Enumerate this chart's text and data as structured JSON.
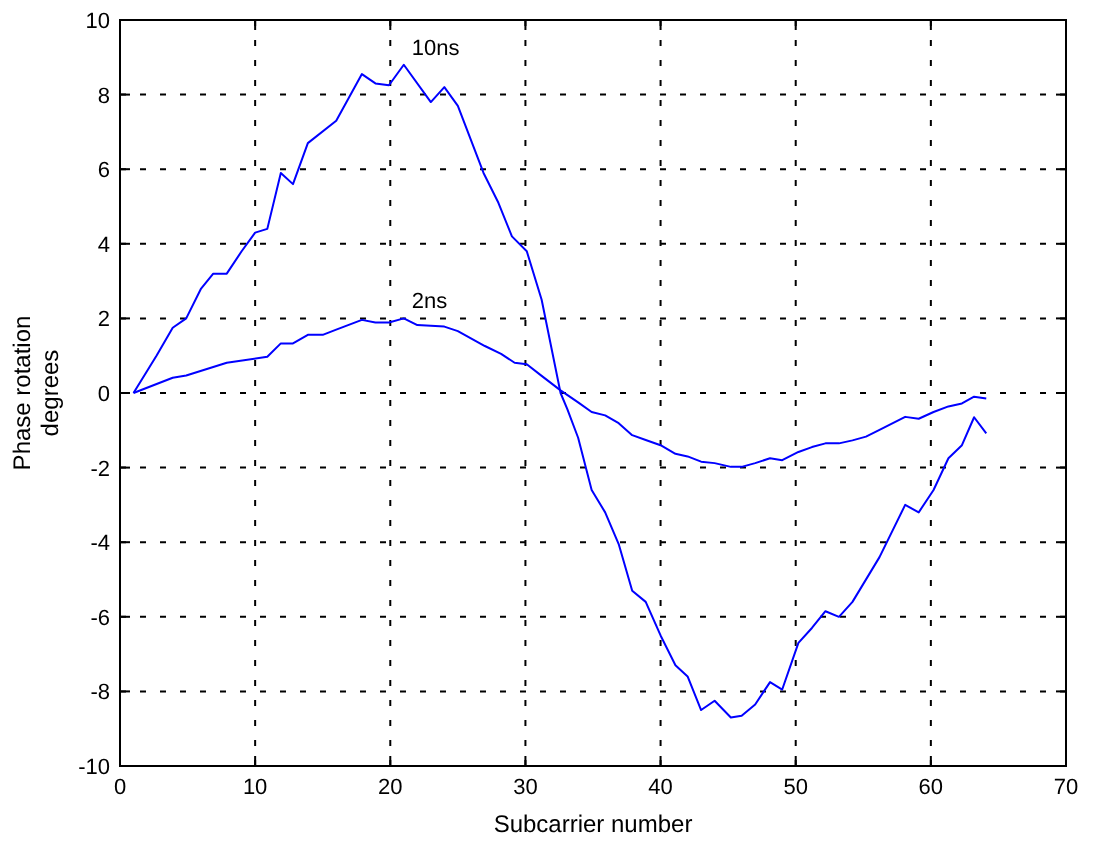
{
  "chart_data": {
    "type": "line",
    "xlabel": "Subcarrier number",
    "ylabel": "Phase rotation\ndegrees",
    "xlim": [
      0,
      70
    ],
    "xticks": [
      0,
      10,
      20,
      30,
      40,
      50,
      60,
      70
    ],
    "ylim": [
      -10,
      10
    ],
    "yticks": [
      -10,
      -8,
      -6,
      -4,
      -2,
      0,
      2,
      4,
      6,
      8,
      10
    ],
    "grid": true,
    "marker": "none",
    "line_style": "solid",
    "series": [
      {
        "name": "10ns",
        "color": "#0000ff",
        "x": [
          1,
          2.7,
          3.9,
          4.9,
          6,
          6.9,
          7.9,
          9,
          10,
          10.9,
          11.9,
          12.8,
          13.9,
          16,
          17.9,
          18.9,
          19.9,
          21,
          23,
          24,
          25,
          26.9,
          28,
          29,
          30.1,
          31.2,
          32.6,
          33.1,
          33.9,
          34.9,
          35.9,
          36.9,
          37.9,
          38.9,
          40,
          41.1,
          42,
          43,
          44,
          45.2,
          46,
          47,
          48.1,
          49,
          50.2,
          51.2,
          52.2,
          53.2,
          54.2,
          56.2,
          58.1,
          59.1,
          60.2,
          61.3,
          62.3,
          63.2,
          64.1
        ],
        "values": [
          0,
          1,
          1.75,
          2,
          2.8,
          3.2,
          3.2,
          3.8,
          4.3,
          4.4,
          5.9,
          5.6,
          6.7,
          7.3,
          8.55,
          8.3,
          8.25,
          8.8,
          7.8,
          8.2,
          7.7,
          5.9,
          5.1,
          4.2,
          3.8,
          2.5,
          0,
          -0.43,
          -1.2,
          -2.6,
          -3.2,
          -4.05,
          -5.3,
          -5.6,
          -6.5,
          -7.3,
          -7.6,
          -8.5,
          -8.25,
          -8.7,
          -8.65,
          -8.35,
          -7.75,
          -7.95,
          -6.7,
          -6.3,
          -5.85,
          -6,
          -5.6,
          -4.4,
          -3,
          -3.2,
          -2.6,
          -1.75,
          -1.4,
          -0.65,
          -1.08
        ]
      },
      {
        "name": "2ns",
        "color": "#0000ff",
        "x": [
          1,
          3.9,
          4.9,
          7.9,
          10.9,
          11.9,
          12.8,
          13.9,
          15,
          16,
          17.9,
          18.9,
          19.9,
          21,
          22,
          24,
          25,
          27,
          28.2,
          29.2,
          30.1,
          31.2,
          32.6,
          33.9,
          34.9,
          35.9,
          36.9,
          37.9,
          38.9,
          40,
          41.1,
          42,
          43,
          44,
          45.2,
          46,
          47,
          48.1,
          49,
          50.2,
          51.2,
          52.2,
          53.2,
          54.2,
          55.2,
          56.2,
          58.1,
          59.1,
          60.2,
          61.3,
          62.3,
          63.2,
          64.1
        ],
        "values": [
          0,
          0.41,
          0.47,
          0.81,
          0.97,
          1.33,
          1.33,
          1.56,
          1.56,
          1.7,
          1.96,
          1.89,
          1.89,
          2,
          1.82,
          1.78,
          1.66,
          1.26,
          1.05,
          0.81,
          0.77,
          0.46,
          0.07,
          -0.25,
          -0.51,
          -0.6,
          -0.81,
          -1.13,
          -1.26,
          -1.4,
          -1.63,
          -1.7,
          -1.84,
          -1.88,
          -1.98,
          -1.98,
          -1.88,
          -1.75,
          -1.8,
          -1.58,
          -1.45,
          -1.35,
          -1.35,
          -1.27,
          -1.17,
          -0.99,
          -0.64,
          -0.69,
          -0.51,
          -0.36,
          -0.28,
          -0.1,
          -0.15
        ]
      }
    ]
  }
}
